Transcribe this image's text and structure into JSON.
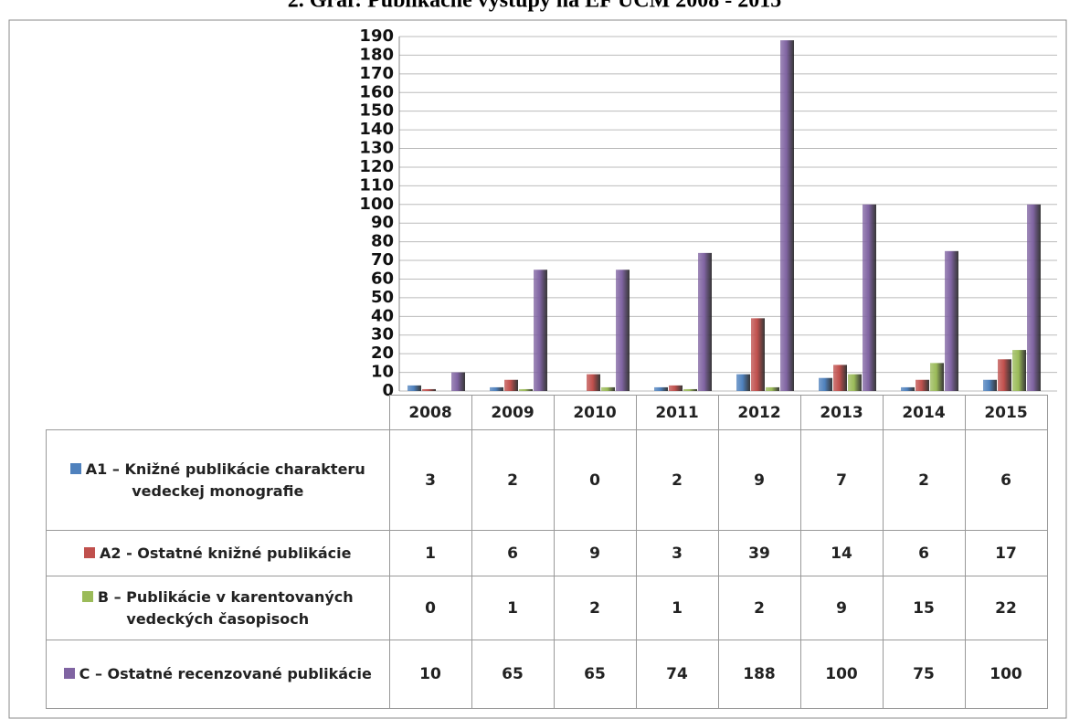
{
  "chart_data": {
    "type": "bar",
    "title": "2. Graf: Publikačné výstupy na EF UCM 2008 - 2015",
    "categories": [
      "2008",
      "2009",
      "2010",
      "2011",
      "2012",
      "2013",
      "2014",
      "2015"
    ],
    "series": [
      {
        "name": "A1 – Knižné publikácie charakteru vedeckej monografie",
        "color": "#4f81bd",
        "values": [
          3,
          2,
          0,
          2,
          9,
          7,
          2,
          6
        ]
      },
      {
        "name": "A2 -  Ostatné knižné publikácie",
        "color": "#c0504d",
        "values": [
          1,
          6,
          9,
          3,
          39,
          14,
          6,
          17
        ]
      },
      {
        "name": "B – Publikácie v karentovaných vedeckých časopisoch",
        "color": "#9bbb59",
        "values": [
          0,
          1,
          2,
          1,
          2,
          9,
          15,
          22
        ]
      },
      {
        "name": "C – Ostatné recenzované publikácie",
        "color": "#8064a2",
        "values": [
          10,
          65,
          65,
          74,
          188,
          100,
          75,
          100
        ]
      }
    ],
    "ylim": [
      0,
      190
    ],
    "yticks": [
      0,
      10,
      20,
      30,
      40,
      50,
      60,
      70,
      80,
      90,
      100,
      110,
      120,
      130,
      140,
      150,
      160,
      170,
      180,
      190
    ],
    "grid": true
  }
}
